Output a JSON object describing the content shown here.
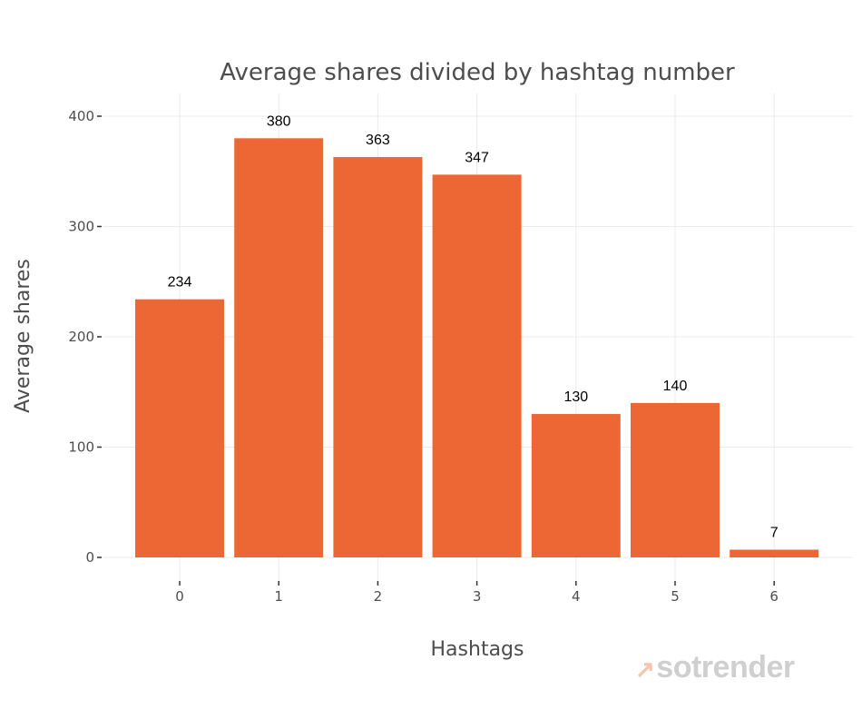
{
  "chart_data": {
    "type": "bar",
    "title": "Average shares divided by hashtag number",
    "xlabel": "Hashtags",
    "ylabel": "Average shares",
    "categories": [
      "0",
      "1",
      "2",
      "3",
      "4",
      "5",
      "6"
    ],
    "values": [
      234,
      380,
      363,
      347,
      130,
      140,
      7
    ],
    "data_labels": [
      "234",
      "380",
      "363",
      "347",
      "130",
      "140",
      "7"
    ],
    "yticks": [
      0,
      100,
      200,
      300,
      400
    ],
    "ylim": [
      0,
      420
    ],
    "grid": true,
    "bar_color": "#EC6733"
  },
  "watermark": {
    "text": "sotrender",
    "color": "#cfcfcf",
    "accent": "#f6c3ad"
  }
}
